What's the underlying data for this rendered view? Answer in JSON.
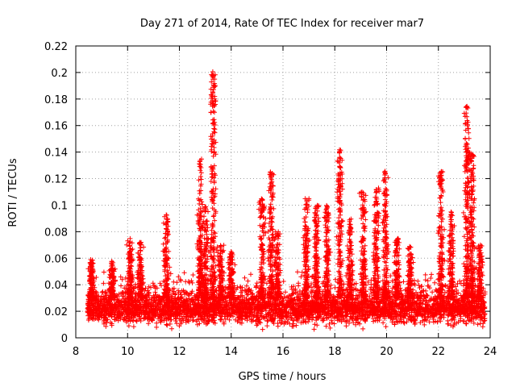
{
  "chart_data": {
    "type": "scatter",
    "title": "Day 271 of 2014, Rate Of TEC Index for receiver mar7",
    "xlabel": "GPS time / hours",
    "ylabel": "ROTI / TECUs",
    "xlim": [
      8,
      24
    ],
    "ylim": [
      0,
      0.22
    ],
    "xticks": [
      "8",
      "10",
      "12",
      "14",
      "16",
      "18",
      "20",
      "22",
      "24"
    ],
    "yticks": [
      "0",
      "0.02",
      "0.04",
      "0.06",
      "0.08",
      "0.1",
      "0.12",
      "0.14",
      "0.16",
      "0.18",
      "0.2",
      "0.22"
    ],
    "grid": true,
    "marker": "+",
    "series_color": "#ff0000",
    "data_range": {
      "x_start": 8.45,
      "x_end": 23.8
    },
    "baseline": {
      "typical_min": 0.008,
      "typical_max": 0.045
    },
    "activity_bursts": [
      {
        "x": 8.6,
        "peak": 0.06
      },
      {
        "x": 9.4,
        "peak": 0.058
      },
      {
        "x": 10.1,
        "peak": 0.075
      },
      {
        "x": 10.5,
        "peak": 0.072
      },
      {
        "x": 11.5,
        "peak": 0.093
      },
      {
        "x": 12.8,
        "peak": 0.135
      },
      {
        "x": 13.0,
        "peak": 0.1
      },
      {
        "x": 13.3,
        "peak": 0.201
      },
      {
        "x": 13.6,
        "peak": 0.07
      },
      {
        "x": 14.0,
        "peak": 0.065
      },
      {
        "x": 15.2,
        "peak": 0.105
      },
      {
        "x": 15.55,
        "peak": 0.125
      },
      {
        "x": 15.8,
        "peak": 0.08
      },
      {
        "x": 16.9,
        "peak": 0.105
      },
      {
        "x": 17.3,
        "peak": 0.1
      },
      {
        "x": 17.7,
        "peak": 0.1
      },
      {
        "x": 18.2,
        "peak": 0.142
      },
      {
        "x": 18.6,
        "peak": 0.09
      },
      {
        "x": 19.1,
        "peak": 0.11
      },
      {
        "x": 19.6,
        "peak": 0.115
      },
      {
        "x": 19.95,
        "peak": 0.126
      },
      {
        "x": 20.4,
        "peak": 0.075
      },
      {
        "x": 20.9,
        "peak": 0.07
      },
      {
        "x": 22.1,
        "peak": 0.126
      },
      {
        "x": 22.5,
        "peak": 0.095
      },
      {
        "x": 23.1,
        "peak": 0.175
      },
      {
        "x": 23.3,
        "peak": 0.14
      },
      {
        "x": 23.6,
        "peak": 0.07
      }
    ]
  }
}
